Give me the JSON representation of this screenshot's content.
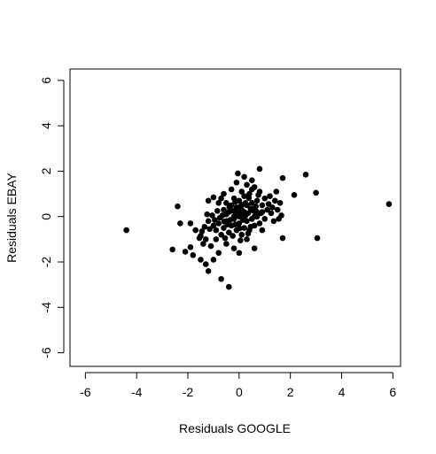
{
  "chart_data": {
    "type": "scatter",
    "title": "",
    "xlabel": "Residuals GOOGLE",
    "ylabel": "Residuals EBAY",
    "xlim": [
      -6.6,
      6.3
    ],
    "ylim": [
      -6.6,
      6.5
    ],
    "xticks": [
      -6,
      -4,
      -2,
      0,
      2,
      4,
      6
    ],
    "yticks": [
      -6,
      -4,
      -2,
      0,
      2,
      4,
      6
    ],
    "grid": false,
    "legend": "none",
    "marker_color": "#000000",
    "points": [
      [
        -4.4,
        -0.6
      ],
      [
        5.85,
        0.55
      ],
      [
        3.0,
        1.05
      ],
      [
        3.05,
        -0.95
      ],
      [
        2.6,
        1.85
      ],
      [
        2.15,
        0.95
      ],
      [
        1.7,
        1.7
      ],
      [
        1.7,
        -0.95
      ],
      [
        1.45,
        1.1
      ],
      [
        1.3,
        0.4
      ],
      [
        1.35,
        -0.2
      ],
      [
        1.6,
        0.6
      ],
      [
        1.55,
        -0.1
      ],
      [
        1.2,
        0.9
      ],
      [
        1.1,
        0.3
      ],
      [
        0.8,
        2.1
      ],
      [
        0.5,
        1.2
      ],
      [
        0.2,
        1.75
      ],
      [
        0.6,
        -1.4
      ],
      [
        -0.4,
        -3.1
      ],
      [
        -0.7,
        -2.75
      ],
      [
        -1.2,
        -2.4
      ],
      [
        -1.5,
        -1.9
      ],
      [
        -1.0,
        -1.9
      ],
      [
        -1.3,
        -2.1
      ],
      [
        -1.8,
        -1.7
      ],
      [
        -1.9,
        -1.35
      ],
      [
        -2.6,
        -1.45
      ],
      [
        -2.1,
        -1.55
      ],
      [
        -2.4,
        0.45
      ],
      [
        -2.3,
        -0.3
      ],
      [
        -1.9,
        -0.3
      ],
      [
        -1.7,
        -0.6
      ],
      [
        -1.5,
        -0.85
      ],
      [
        -1.4,
        -1.2
      ],
      [
        -1.3,
        -1.0
      ],
      [
        -1.1,
        -1.3
      ],
      [
        -0.9,
        -1.0
      ],
      [
        -0.8,
        -1.6
      ],
      [
        -0.5,
        -1.2
      ],
      [
        -0.2,
        -1.4
      ],
      [
        0.0,
        -1.6
      ],
      [
        0.3,
        -1.0
      ],
      [
        -1.2,
        0.7
      ],
      [
        -1.0,
        0.85
      ],
      [
        -0.8,
        0.6
      ],
      [
        -0.7,
        0.8
      ],
      [
        -0.5,
        0.1
      ],
      [
        -1.2,
        -0.2
      ],
      [
        -1.0,
        -0.4
      ],
      [
        -0.9,
        -0.6
      ],
      [
        -0.8,
        -0.3
      ],
      [
        -0.7,
        -0.8
      ],
      [
        -0.6,
        -0.5
      ],
      [
        -0.5,
        -0.2
      ],
      [
        -0.4,
        -0.7
      ],
      [
        -0.3,
        -0.4
      ],
      [
        -0.2,
        -0.1
      ],
      [
        -0.1,
        -0.6
      ],
      [
        0.0,
        -0.3
      ],
      [
        0.1,
        -0.8
      ],
      [
        0.2,
        -0.5
      ],
      [
        0.3,
        -0.2
      ],
      [
        0.4,
        -0.6
      ],
      [
        0.5,
        -0.1
      ],
      [
        0.6,
        -0.4
      ],
      [
        0.7,
        0.0
      ],
      [
        0.8,
        -0.3
      ],
      [
        0.9,
        0.2
      ],
      [
        1.0,
        -0.1
      ],
      [
        -0.6,
        0.3
      ],
      [
        -0.5,
        0.6
      ],
      [
        -0.4,
        0.2
      ],
      [
        -0.3,
        0.5
      ],
      [
        -0.2,
        0.8
      ],
      [
        -0.1,
        0.4
      ],
      [
        0.0,
        0.7
      ],
      [
        0.1,
        0.3
      ],
      [
        0.2,
        0.9
      ],
      [
        0.3,
        0.5
      ],
      [
        0.4,
        1.0
      ],
      [
        0.5,
        0.6
      ],
      [
        0.6,
        1.3
      ],
      [
        0.7,
        0.7
      ],
      [
        0.8,
        1.1
      ],
      [
        0.9,
        0.5
      ],
      [
        1.0,
        0.8
      ],
      [
        -0.3,
        1.2
      ],
      [
        -0.1,
        1.5
      ],
      [
        0.1,
        1.1
      ],
      [
        0.3,
        1.4
      ],
      [
        0.5,
        1.6
      ],
      [
        -0.2,
        0.0
      ],
      [
        0.0,
        0.0
      ],
      [
        0.1,
        0.1
      ],
      [
        0.2,
        0.2
      ],
      [
        -0.1,
        0.2
      ],
      [
        0.15,
        -0.15
      ],
      [
        -0.25,
        0.25
      ],
      [
        0.35,
        0.15
      ],
      [
        0.45,
        0.35
      ],
      [
        -0.35,
        -0.15
      ],
      [
        0.25,
        0.6
      ],
      [
        -0.45,
        -0.35
      ],
      [
        0.55,
        0.25
      ],
      [
        -0.15,
        0.65
      ],
      [
        0.05,
        0.45
      ],
      [
        0.65,
        0.45
      ],
      [
        -0.65,
        0.05
      ],
      [
        0.75,
        0.95
      ],
      [
        0.85,
        0.15
      ],
      [
        1.15,
        0.55
      ],
      [
        1.25,
        0.15
      ],
      [
        -0.75,
        -0.05
      ],
      [
        -0.85,
        0.25
      ],
      [
        -0.95,
        -0.15
      ],
      [
        -1.05,
        0.05
      ],
      [
        -1.15,
        -0.55
      ],
      [
        -1.35,
        -0.45
      ],
      [
        -1.45,
        -0.65
      ],
      [
        -1.55,
        -0.95
      ],
      [
        -0.55,
        -0.95
      ],
      [
        -0.25,
        -0.85
      ],
      [
        0.05,
        -1.05
      ],
      [
        0.35,
        -0.75
      ],
      [
        -0.05,
        1.9
      ],
      [
        0.6,
        0.0
      ],
      [
        0.9,
        -0.6
      ],
      [
        1.4,
        0.7
      ],
      [
        1.5,
        0.3
      ],
      [
        1.65,
        0.05
      ],
      [
        -0.6,
        1.0
      ],
      [
        -1.25,
        0.1
      ],
      [
        0.45,
        -0.45
      ],
      [
        -0.15,
        -0.35
      ],
      [
        0.25,
        0.05
      ],
      [
        -0.05,
        0.15
      ],
      [
        0.12,
        0.52
      ],
      [
        -0.38,
        0.42
      ],
      [
        0.68,
        0.22
      ],
      [
        -0.58,
        -0.22
      ],
      [
        0.38,
        0.82
      ],
      [
        0.02,
        -0.52
      ]
    ]
  }
}
